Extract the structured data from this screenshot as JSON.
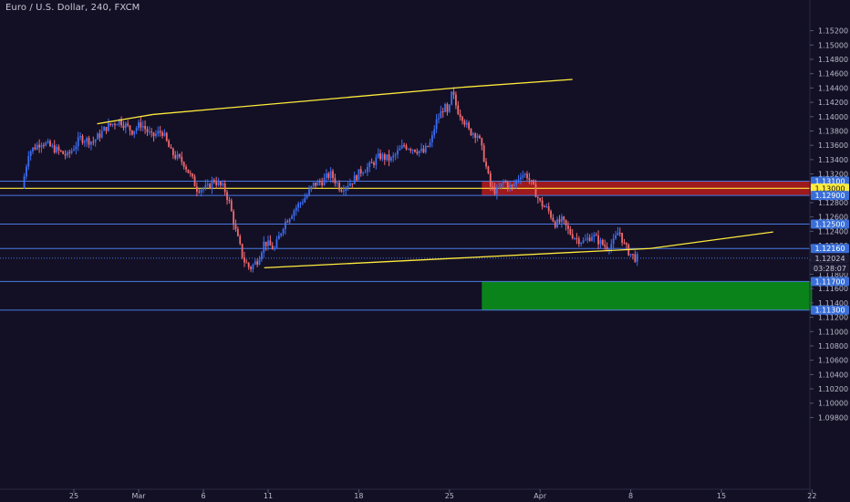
{
  "symbol_title": "Euro / U.S. Dollar, 240, FXCM",
  "colors": {
    "background": "#131026",
    "up": "#3c6df0",
    "down": "#ef6a6e",
    "trendline": "#ffeb3b",
    "level_line": "#4a78e0",
    "resistance_zone": "#b71c1c",
    "target_zone": "#0a8a1a",
    "axis_text": "#b8bac8",
    "label_bg": "#3a6fd8",
    "highlight_label_bg": "#ffeb3b"
  },
  "chart_data": {
    "type": "candlestick",
    "title": "Euro / U.S. Dollar, 240, FXCM",
    "ylim": [
      1.0885,
      1.1545
    ],
    "y_ticks": [
      "1.15200",
      "1.15000",
      "1.14800",
      "1.14600",
      "1.14400",
      "1.14200",
      "1.14000",
      "1.13800",
      "1.13600",
      "1.13400",
      "1.13200",
      "1.13000",
      "1.12800",
      "1.12600",
      "1.12400",
      "1.12200",
      "1.12000",
      "1.11800",
      "1.11600",
      "1.11400",
      "1.11200",
      "1.11000",
      "1.10800",
      "1.10600",
      "1.10400",
      "1.10200",
      "1.10000",
      "1.09800"
    ],
    "x_ticks": [
      "25",
      "Mar",
      "6",
      "11",
      "18",
      "25",
      "Apr",
      "8",
      "15",
      "22"
    ],
    "x_tick_days": [
      -5,
      0,
      5,
      10,
      17,
      24,
      31,
      38,
      45,
      52
    ],
    "price_levels": [
      {
        "label": "1.13100",
        "value": 1.131,
        "style": "line"
      },
      {
        "label": "1.13000",
        "value": 1.13,
        "style": "highlight"
      },
      {
        "label": "1.12900",
        "value": 1.129,
        "style": "line"
      },
      {
        "label": "1.12500",
        "value": 1.125,
        "style": "line"
      },
      {
        "label": "1.12160",
        "value": 1.1216,
        "style": "line"
      },
      {
        "label": "1.12024",
        "value": 1.12024,
        "style": "dotted"
      },
      {
        "label": "1.11700",
        "value": 1.117,
        "style": "line"
      },
      {
        "label": "1.11300",
        "value": 1.113,
        "style": "line"
      }
    ],
    "countdown_label": "03:28:07",
    "zones": [
      {
        "name": "resistance",
        "start_day": 26.5,
        "end_day": 52,
        "low": 1.129,
        "high": 1.131
      },
      {
        "name": "target",
        "start_day": 26.5,
        "end_day": 52,
        "low": 1.113,
        "high": 1.117
      }
    ],
    "trendlines": [
      {
        "from": [
          -3.2,
          1.139
        ],
        "to": [
          1.1,
          1.1403
        ]
      },
      {
        "from": [
          1.1,
          1.1403
        ],
        "to": [
          25,
          1.1441
        ]
      },
      {
        "from": [
          25,
          1.1441
        ],
        "to": [
          33.5,
          1.1452
        ]
      },
      {
        "from": [
          9.7,
          1.1189
        ],
        "to": [
          39.5,
          1.1216
        ]
      },
      {
        "from": [
          39.5,
          1.1216
        ],
        "to": [
          49,
          1.1239
        ]
      }
    ],
    "waypoints": [
      [
        -9.0,
        1.13
      ],
      [
        -8.5,
        1.135
      ],
      [
        -7.5,
        1.1365
      ],
      [
        -6.5,
        1.1355
      ],
      [
        -5.5,
        1.1345
      ],
      [
        -4.5,
        1.137
      ],
      [
        -3.5,
        1.1365
      ],
      [
        -2.5,
        1.1385
      ],
      [
        -1.5,
        1.1395
      ],
      [
        -0.5,
        1.138
      ],
      [
        0.2,
        1.139
      ],
      [
        1.0,
        1.1372
      ],
      [
        1.8,
        1.138
      ],
      [
        2.5,
        1.135
      ],
      [
        3.5,
        1.1335
      ],
      [
        4.5,
        1.13
      ],
      [
        5.3,
        1.13
      ],
      [
        5.8,
        1.1312
      ],
      [
        6.2,
        1.1305
      ],
      [
        6.6,
        1.13
      ],
      [
        7.0,
        1.128
      ],
      [
        7.5,
        1.124
      ],
      [
        8.1,
        1.12
      ],
      [
        8.6,
        1.1188
      ],
      [
        9.2,
        1.12
      ],
      [
        9.7,
        1.1225
      ],
      [
        10.5,
        1.1215
      ],
      [
        11.2,
        1.125
      ],
      [
        12.0,
        1.127
      ],
      [
        12.5,
        1.128
      ],
      [
        13.0,
        1.129
      ],
      [
        13.5,
        1.1305
      ],
      [
        14.2,
        1.131
      ],
      [
        14.8,
        1.132
      ],
      [
        15.6,
        1.13
      ],
      [
        16.5,
        1.131
      ],
      [
        17.2,
        1.1325
      ],
      [
        17.8,
        1.133
      ],
      [
        18.6,
        1.1345
      ],
      [
        19.5,
        1.134
      ],
      [
        20.5,
        1.136
      ],
      [
        21.3,
        1.1355
      ],
      [
        22.0,
        1.135
      ],
      [
        22.6,
        1.1365
      ],
      [
        22.9,
        1.139
      ],
      [
        23.2,
        1.14
      ],
      [
        23.6,
        1.1415
      ],
      [
        23.9,
        1.14
      ],
      [
        24.2,
        1.1435
      ],
      [
        24.6,
        1.141
      ],
      [
        25.0,
        1.14
      ],
      [
        25.5,
        1.138
      ],
      [
        26.2,
        1.1375
      ],
      [
        26.7,
        1.134
      ],
      [
        27.2,
        1.13
      ],
      [
        27.7,
        1.1295
      ],
      [
        28.2,
        1.131
      ],
      [
        28.8,
        1.13
      ],
      [
        29.5,
        1.132
      ],
      [
        30.0,
        1.1318
      ],
      [
        30.5,
        1.13
      ],
      [
        31.0,
        1.128
      ],
      [
        31.6,
        1.127
      ],
      [
        32.2,
        1.125
      ],
      [
        32.7,
        1.1255
      ],
      [
        33.2,
        1.124
      ],
      [
        33.8,
        1.123
      ],
      [
        34.4,
        1.1225
      ],
      [
        35.0,
        1.1235
      ],
      [
        35.6,
        1.1225
      ],
      [
        36.1,
        1.1218
      ],
      [
        36.7,
        1.1225
      ],
      [
        37.1,
        1.1242
      ],
      [
        37.5,
        1.122
      ],
      [
        37.9,
        1.121
      ],
      [
        38.3,
        1.1203
      ],
      [
        38.6,
        1.12024
      ]
    ]
  }
}
